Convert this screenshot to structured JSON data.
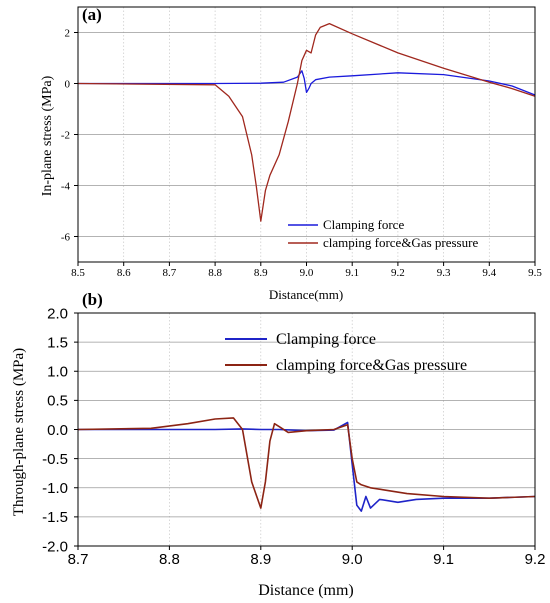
{
  "chart_data": [
    {
      "panel_label": "(a)",
      "type": "line",
      "xlabel": "Distance(mm)",
      "ylabel": "In-plane stress (MPa)",
      "xlim": [
        8.5,
        9.5
      ],
      "ylim": [
        -7,
        3
      ],
      "xticks": [
        "8.5",
        "8.6",
        "8.7",
        "8.8",
        "8.9",
        "9.0",
        "9.1",
        "9.2",
        "9.3",
        "9.4",
        "9.5"
      ],
      "yticks": [
        "-6",
        "-4",
        "-2",
        "0",
        "2"
      ],
      "grid": true,
      "legend_position": "lower-right",
      "series": [
        {
          "name": "Clamping force",
          "color": "#1a1adc",
          "x": [
            8.5,
            8.8,
            8.9,
            8.95,
            8.98,
            8.99,
            8.995,
            9.0,
            9.005,
            9.01,
            9.02,
            9.05,
            9.1,
            9.2,
            9.3,
            9.4,
            9.45,
            9.5
          ],
          "y": [
            0.0,
            0.0,
            0.01,
            0.05,
            0.25,
            0.5,
            0.2,
            -0.35,
            -0.2,
            0.0,
            0.15,
            0.25,
            0.3,
            0.42,
            0.35,
            0.1,
            -0.1,
            -0.45
          ]
        },
        {
          "name": "clamping force&Gas pressure",
          "color": "#a0281e",
          "x": [
            8.5,
            8.8,
            8.83,
            8.86,
            8.88,
            8.89,
            8.9,
            8.91,
            8.92,
            8.94,
            8.96,
            8.98,
            8.99,
            9.0,
            9.01,
            9.02,
            9.03,
            9.05,
            9.1,
            9.2,
            9.3,
            9.4,
            9.45,
            9.5
          ],
          "y": [
            0.0,
            -0.05,
            -0.5,
            -1.3,
            -2.8,
            -4.0,
            -5.4,
            -4.2,
            -3.6,
            -2.8,
            -1.5,
            0.0,
            0.9,
            1.3,
            1.2,
            1.9,
            2.2,
            2.35,
            1.95,
            1.2,
            0.6,
            0.05,
            -0.2,
            -0.5
          ]
        }
      ]
    },
    {
      "panel_label": "(b)",
      "type": "line",
      "xlabel": "Distance (mm)",
      "ylabel": "Through-plane stress (MPa)",
      "xlim": [
        8.7,
        9.2
      ],
      "ylim": [
        -2.0,
        2.0
      ],
      "xticks": [
        "8.7",
        "8.8",
        "8.9",
        "9.0",
        "9.1",
        "9.2"
      ],
      "yticks": [
        "-2.0",
        "-1.5",
        "-1.0",
        "-0.5",
        "0.0",
        "0.5",
        "1.0",
        "1.5",
        "2.0"
      ],
      "grid": true,
      "legend_position": "top-right",
      "series": [
        {
          "name": "Clamping force",
          "color": "#1f24c8",
          "x": [
            8.7,
            8.8,
            8.85,
            8.88,
            8.9,
            8.92,
            8.95,
            8.98,
            8.995,
            9.0,
            9.005,
            9.01,
            9.015,
            9.02,
            9.03,
            9.05,
            9.07,
            9.1,
            9.15,
            9.2
          ],
          "y": [
            0.0,
            0.0,
            0.0,
            0.01,
            0.0,
            0.0,
            -0.02,
            -0.01,
            0.12,
            -0.6,
            -1.3,
            -1.4,
            -1.15,
            -1.35,
            -1.2,
            -1.25,
            -1.2,
            -1.18,
            -1.18,
            -1.15
          ]
        },
        {
          "name": "clamping force&Gas pressure",
          "color": "#8c2414",
          "x": [
            8.7,
            8.78,
            8.82,
            8.85,
            8.87,
            8.88,
            8.89,
            8.9,
            8.905,
            8.91,
            8.915,
            8.92,
            8.93,
            8.95,
            8.98,
            8.995,
            9.0,
            9.005,
            9.01,
            9.02,
            9.04,
            9.06,
            9.1,
            9.15,
            9.2
          ],
          "y": [
            0.0,
            0.02,
            0.1,
            0.18,
            0.2,
            0.0,
            -0.9,
            -1.35,
            -0.9,
            -0.2,
            0.1,
            0.05,
            -0.05,
            -0.02,
            0.0,
            0.08,
            -0.5,
            -0.9,
            -0.95,
            -1.0,
            -1.05,
            -1.1,
            -1.15,
            -1.18,
            -1.15
          ]
        }
      ]
    }
  ]
}
